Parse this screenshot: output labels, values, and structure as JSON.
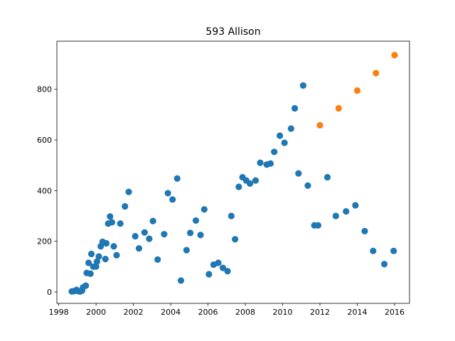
{
  "chart_data": {
    "type": "scatter",
    "title": "593 Allison",
    "xlabel": "",
    "ylabel": "",
    "xlim": [
      1997.9,
      2016.8
    ],
    "ylim": [
      -45,
      990
    ],
    "xticks": [
      1998,
      2000,
      2002,
      2004,
      2006,
      2008,
      2010,
      2012,
      2014,
      2016
    ],
    "yticks": [
      0,
      200,
      400,
      600,
      800
    ],
    "grid": false,
    "series": [
      {
        "color": "#1f77b4",
        "points": [
          [
            1998.7,
            2
          ],
          [
            1998.85,
            4
          ],
          [
            1998.95,
            8
          ],
          [
            1999.05,
            3
          ],
          [
            1999.15,
            2
          ],
          [
            1999.25,
            5
          ],
          [
            1999.3,
            18
          ],
          [
            1999.45,
            25
          ],
          [
            1999.5,
            75
          ],
          [
            1999.6,
            115
          ],
          [
            1999.7,
            72
          ],
          [
            1999.75,
            150
          ],
          [
            1999.85,
            100
          ],
          [
            2000.0,
            100
          ],
          [
            2000.05,
            120
          ],
          [
            2000.15,
            140
          ],
          [
            2000.25,
            180
          ],
          [
            2000.35,
            198
          ],
          [
            2000.5,
            130
          ],
          [
            2000.55,
            192
          ],
          [
            2000.65,
            270
          ],
          [
            2000.75,
            298
          ],
          [
            2000.85,
            275
          ],
          [
            2000.95,
            180
          ],
          [
            2001.1,
            145
          ],
          [
            2001.3,
            270
          ],
          [
            2001.55,
            338
          ],
          [
            2001.75,
            395
          ],
          [
            2002.1,
            220
          ],
          [
            2002.3,
            172
          ],
          [
            2002.6,
            235
          ],
          [
            2002.85,
            210
          ],
          [
            2003.05,
            280
          ],
          [
            2003.3,
            128
          ],
          [
            2003.65,
            228
          ],
          [
            2003.85,
            390
          ],
          [
            2004.1,
            365
          ],
          [
            2004.35,
            448
          ],
          [
            2004.55,
            45
          ],
          [
            2004.85,
            165
          ],
          [
            2005.05,
            233
          ],
          [
            2005.35,
            282
          ],
          [
            2005.6,
            225
          ],
          [
            2005.8,
            326
          ],
          [
            2006.05,
            70
          ],
          [
            2006.3,
            108
          ],
          [
            2006.55,
            115
          ],
          [
            2006.8,
            95
          ],
          [
            2007.05,
            82
          ],
          [
            2007.25,
            300
          ],
          [
            2007.45,
            208
          ],
          [
            2007.65,
            415
          ],
          [
            2007.85,
            453
          ],
          [
            2008.05,
            440
          ],
          [
            2008.25,
            428
          ],
          [
            2008.55,
            440
          ],
          [
            2008.8,
            510
          ],
          [
            2009.15,
            503
          ],
          [
            2009.35,
            507
          ],
          [
            2009.55,
            553
          ],
          [
            2009.85,
            617
          ],
          [
            2010.1,
            589
          ],
          [
            2010.45,
            645
          ],
          [
            2010.65,
            725
          ],
          [
            2010.85,
            468
          ],
          [
            2011.1,
            815
          ],
          [
            2011.35,
            420
          ],
          [
            2011.7,
            263
          ],
          [
            2011.9,
            263
          ],
          [
            2012.4,
            453
          ],
          [
            2012.85,
            300
          ],
          [
            2013.4,
            318
          ],
          [
            2013.9,
            342
          ],
          [
            2014.4,
            240
          ],
          [
            2014.85,
            162
          ],
          [
            2015.45,
            110
          ],
          [
            2015.95,
            162
          ]
        ]
      },
      {
        "color": "#ff7f0e",
        "points": [
          [
            2012.0,
            658
          ],
          [
            2013.0,
            725
          ],
          [
            2014.0,
            795
          ],
          [
            2015.0,
            864
          ],
          [
            2016.0,
            935
          ]
        ]
      }
    ]
  }
}
